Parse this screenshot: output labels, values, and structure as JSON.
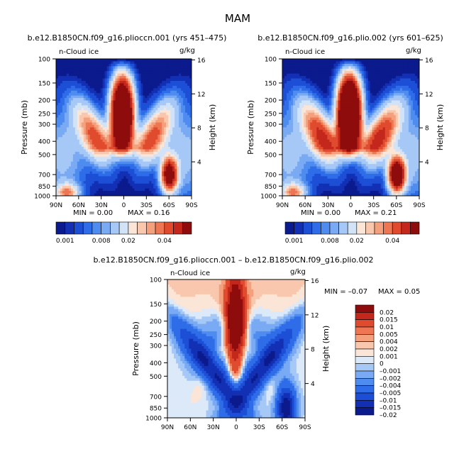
{
  "page_title": "MAM",
  "diff_title": "b.e12.B1850CN.f09_g16.plioccn.001 – b.e12.B1850CN.f09_g16.plio.002",
  "chart_data": [
    {
      "type": "heatmap",
      "id": "panel-left",
      "title": "b.e12.B1850CN.f09_g16.plioccn.001 (yrs 451–475)",
      "variable": "n-Cloud ice",
      "units": "g/kg",
      "ylabel": "Pressure (mb)",
      "y2label": "Height (km)",
      "xticks": [
        "90N",
        "60N",
        "30N",
        "0",
        "30S",
        "60S",
        "90S"
      ],
      "yticks": [
        100,
        150,
        200,
        250,
        300,
        400,
        500,
        700,
        850,
        1000
      ],
      "y2ticks": [
        16,
        12,
        8,
        4
      ],
      "xlim": [
        90,
        -90
      ],
      "ylim": [
        1000,
        100
      ],
      "min_text": "MIN =    0.00",
      "max_text": "MAX =    0.16",
      "features": {
        "tropical_max_lat": 2,
        "tropical_max_p": 250,
        "ne_max_p": 400,
        "sh_max_lat": -60,
        "sh_max_p": 700,
        "nh_low_lat": 75,
        "nh_low_p": 950
      },
      "colorbar_labels": [
        "0.001",
        "0.008",
        "0.02",
        "0.04"
      ]
    },
    {
      "type": "heatmap",
      "id": "panel-right",
      "title": "b.e12.B1850CN.f09_g16.plio.002 (yrs 601–625)",
      "variable": "n-Cloud ice",
      "units": "g/kg",
      "ylabel": "Pressure (mb)",
      "y2label": "Height (km)",
      "xticks": [
        "90N",
        "60N",
        "30N",
        "0",
        "30S",
        "60S",
        "90S"
      ],
      "yticks": [
        100,
        150,
        200,
        250,
        300,
        400,
        500,
        700,
        850,
        1000
      ],
      "y2ticks": [
        16,
        12,
        8,
        4
      ],
      "xlim": [
        90,
        -90
      ],
      "ylim": [
        1000,
        100
      ],
      "min_text": "MIN =    0.00",
      "max_text": "MAX =    0.21",
      "features": {
        "tropical_max_lat": 2,
        "tropical_max_p": 250,
        "ne_max_p": 400,
        "sh_max_lat": -60,
        "sh_max_p": 700,
        "nh_low_lat": 75,
        "nh_low_p": 950
      },
      "colorbar_labels": [
        "0.001",
        "0.008",
        "0.02",
        "0.04"
      ]
    },
    {
      "type": "heatmap",
      "id": "panel-diff",
      "title": "b.e12.B1850CN.f09_g16.plioccn.001 – b.e12.B1850CN.f09_g16.plio.002",
      "variable": "n-Cloud ice",
      "units": "g/kg",
      "ylabel": "Pressure (mb)",
      "y2label": "Height (km)",
      "xticks": [
        "90N",
        "60N",
        "30N",
        "0",
        "30S",
        "60S",
        "90S"
      ],
      "yticks": [
        100,
        150,
        200,
        250,
        300,
        400,
        500,
        700,
        850,
        1000
      ],
      "y2ticks": [
        16,
        12,
        8,
        4
      ],
      "xlim": [
        90,
        -90
      ],
      "ylim": [
        1000,
        100
      ],
      "min_text": "MIN =   –0.07",
      "max_text": "MAX =    0.05",
      "colorbar_labels": [
        "0.02",
        "0.015",
        "0.01",
        "0.005",
        "0.004",
        "0.002",
        "0.001",
        "0",
        "–0.001",
        "–0.002",
        "–0.004",
        "–0.005",
        "–0.01",
        "–0.015",
        "–0.02"
      ]
    }
  ],
  "colors": {
    "seq": [
      "#0b1a8c",
      "#1330b4",
      "#1c4fd6",
      "#2e6ce8",
      "#4f8cf0",
      "#79aaf3",
      "#a6c8f6",
      "#d2e3f8",
      "#fbe5d6",
      "#f9c7ad",
      "#f5a07d",
      "#ee7652",
      "#e04b2e",
      "#c4271c",
      "#8e0c0c"
    ],
    "div": [
      "#0b1a8c",
      "#1330b4",
      "#1c4fd6",
      "#2e6ce8",
      "#4f8cf0",
      "#79aaf3",
      "#a6c8f6",
      "#dce9f8",
      "#fbe5d6",
      "#f9c7ad",
      "#f5a07d",
      "#ee7652",
      "#e04b2e",
      "#c4271c",
      "#8e0c0c"
    ]
  }
}
